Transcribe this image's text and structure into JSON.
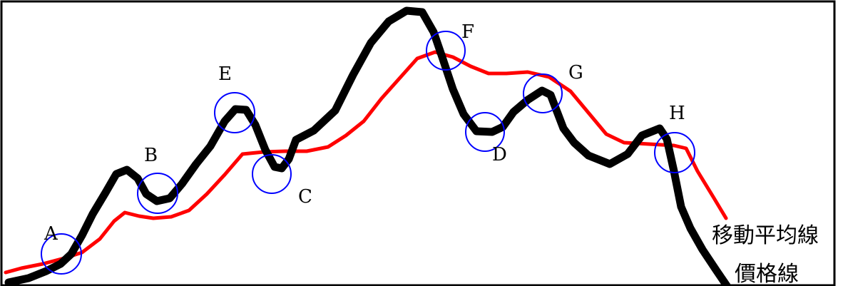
{
  "colors": {
    "price_line": "#000000",
    "moving_average": "#ff0000",
    "marker_circle": "#0000ff",
    "frame": "#000000",
    "background": "#ffffff"
  },
  "labels": {
    "moving_average": "移動平均線",
    "price_line": "價格線"
  },
  "points": [
    {
      "id": "A",
      "label": "A"
    },
    {
      "id": "B",
      "label": "B"
    },
    {
      "id": "C",
      "label": "C"
    },
    {
      "id": "D",
      "label": "D"
    },
    {
      "id": "E",
      "label": "E"
    },
    {
      "id": "F",
      "label": "F"
    },
    {
      "id": "G",
      "label": "G"
    },
    {
      "id": "H",
      "label": "H"
    }
  ]
}
